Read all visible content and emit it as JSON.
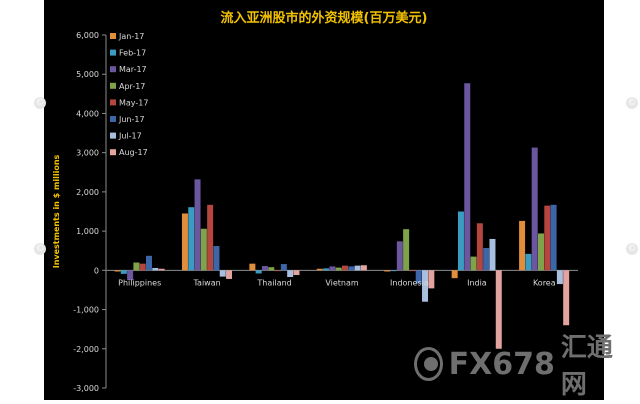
{
  "chart_data": {
    "type": "bar",
    "title": "流入亚洲股市的外资规模(百万美元)",
    "ylabel": "Investments in $ millions",
    "xlabel": "",
    "ylim": [
      -3000,
      6000
    ],
    "yticks": [
      -3000,
      -2000,
      -1000,
      0,
      1000,
      2000,
      3000,
      4000,
      5000,
      6000
    ],
    "ytick_labels": [
      "-3,000",
      "-2,000",
      "-1,000",
      "0",
      "1,000",
      "2,000",
      "3,000",
      "4,000",
      "5,000",
      "6,000"
    ],
    "grid": false,
    "legend": "top-left",
    "categories": [
      "Philippines",
      "Taiwan",
      "Thailand",
      "Vietnam",
      "Indonesia",
      "India",
      "Korea"
    ],
    "series": [
      {
        "name": "Jan-17",
        "color": "#e08d3c",
        "values": [
          -30,
          1450,
          170,
          40,
          -30,
          -200,
          1260
        ]
      },
      {
        "name": "Feb-17",
        "color": "#3b9cc2",
        "values": [
          -90,
          1610,
          -80,
          50,
          0,
          1500,
          420
        ]
      },
      {
        "name": "Mar-17",
        "color": "#6b56a0",
        "values": [
          -250,
          2320,
          110,
          100,
          740,
          4770,
          3130
        ]
      },
      {
        "name": "Apr-17",
        "color": "#7fa34a",
        "values": [
          200,
          1060,
          80,
          70,
          1050,
          350,
          940
        ]
      },
      {
        "name": "May-17",
        "color": "#b4463f",
        "values": [
          170,
          1670,
          0,
          120,
          0,
          1200,
          1650
        ]
      },
      {
        "name": "Jun-17",
        "color": "#3d66a8",
        "values": [
          370,
          620,
          160,
          100,
          -340,
          570,
          1670
        ]
      },
      {
        "name": "Jul-17",
        "color": "#a8bfe0",
        "values": [
          60,
          -160,
          -170,
          120,
          -800,
          800,
          -350
        ]
      },
      {
        "name": "Aug-17",
        "color": "#e3a39e",
        "values": [
          40,
          -220,
          -120,
          130,
          -460,
          -2000,
          -1400
        ]
      }
    ]
  },
  "side_marks": [
    "©",
    "©",
    "©",
    "©"
  ],
  "watermark": {
    "brand": "FX678",
    "cn": "汇通网"
  }
}
